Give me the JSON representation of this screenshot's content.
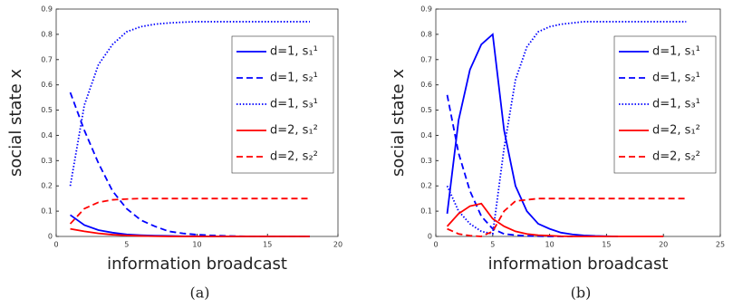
{
  "chart_data": [
    {
      "type": "line",
      "caption": "(a)",
      "xlabel": "information broadcast",
      "ylabel": "social state x",
      "xlim": [
        0,
        20
      ],
      "xticks": [
        0,
        5,
        10,
        15,
        20
      ],
      "ylim": [
        0,
        0.9
      ],
      "yticks": [
        0,
        0.1,
        0.2,
        0.3,
        0.4,
        0.5,
        0.6,
        0.7,
        0.8,
        0.9
      ],
      "legend": "upper right",
      "x": [
        1,
        2,
        3,
        4,
        5,
        6,
        7,
        8,
        9,
        10,
        11,
        12,
        13,
        14,
        15,
        16,
        17,
        18
      ],
      "series": [
        {
          "name": "d=1, s₁¹",
          "color": "#0000ff",
          "dash": "solid",
          "values": [
            0.085,
            0.045,
            0.025,
            0.015,
            0.008,
            0.005,
            0.003,
            0.002,
            0.001,
            0.001,
            0,
            0,
            0,
            0,
            0,
            0,
            0,
            0
          ]
        },
        {
          "name": "d=1, s₂¹",
          "color": "#0000ff",
          "dash": "dashed",
          "values": [
            0.57,
            0.42,
            0.29,
            0.18,
            0.11,
            0.065,
            0.04,
            0.02,
            0.012,
            0.007,
            0.004,
            0.002,
            0.001,
            0,
            0,
            0,
            0,
            0
          ]
        },
        {
          "name": "d=1, s₃¹",
          "color": "#0000ff",
          "dash": "dotted",
          "values": [
            0.2,
            0.52,
            0.68,
            0.76,
            0.81,
            0.83,
            0.84,
            0.845,
            0.848,
            0.85,
            0.85,
            0.85,
            0.85,
            0.85,
            0.85,
            0.85,
            0.85,
            0.85
          ]
        },
        {
          "name": "d=2, s₁²",
          "color": "#ff0000",
          "dash": "solid",
          "values": [
            0.03,
            0.02,
            0.012,
            0.007,
            0.004,
            0.002,
            0.001,
            0,
            0,
            0,
            0,
            0,
            0,
            0,
            0,
            0,
            0,
            0
          ]
        },
        {
          "name": "d=2, s₂²",
          "color": "#ff0000",
          "dash": "dashed",
          "values": [
            0.05,
            0.11,
            0.135,
            0.145,
            0.148,
            0.15,
            0.15,
            0.15,
            0.15,
            0.15,
            0.15,
            0.15,
            0.15,
            0.15,
            0.15,
            0.15,
            0.15,
            0.15
          ]
        }
      ]
    },
    {
      "type": "line",
      "caption": "(b)",
      "xlabel": "information broadcast",
      "ylabel": "social state x",
      "xlim": [
        0,
        25
      ],
      "xticks": [
        0,
        5,
        10,
        15,
        20,
        25
      ],
      "ylim": [
        0,
        0.9
      ],
      "yticks": [
        0,
        0.1,
        0.2,
        0.3,
        0.4,
        0.5,
        0.6,
        0.7,
        0.8,
        0.9
      ],
      "legend": "upper right",
      "x": [
        1,
        2,
        3,
        4,
        5,
        6,
        7,
        8,
        9,
        10,
        11,
        12,
        13,
        14,
        15,
        16,
        17,
        18,
        19,
        20,
        21,
        22
      ],
      "series": [
        {
          "name": "d=1, s₁¹",
          "color": "#0000ff",
          "dash": "solid",
          "values": [
            0.09,
            0.46,
            0.66,
            0.76,
            0.8,
            0.42,
            0.2,
            0.1,
            0.05,
            0.03,
            0.015,
            0.008,
            0.004,
            0.002,
            0.001,
            0,
            null,
            null,
            null,
            null,
            null,
            null
          ]
        },
        {
          "name": "d=1, s₂¹",
          "color": "#0000ff",
          "dash": "dashed",
          "values": [
            0.56,
            0.33,
            0.18,
            0.08,
            0.03,
            0.01,
            0.005,
            0.002,
            0.001,
            0,
            0,
            0,
            null,
            null,
            null,
            null,
            null,
            null,
            null,
            null,
            null,
            null
          ]
        },
        {
          "name": "d=1, s₃¹",
          "color": "#0000ff",
          "dash": "dotted",
          "values": [
            0.2,
            0.1,
            0.05,
            0.02,
            0.01,
            0.35,
            0.62,
            0.75,
            0.81,
            0.83,
            0.84,
            0.845,
            0.85,
            0.85,
            0.85,
            0.85,
            0.85,
            0.85,
            0.85,
            0.85,
            0.85,
            0.85
          ]
        },
        {
          "name": "d=2, s₁²",
          "color": "#ff0000",
          "dash": "solid",
          "values": [
            0.04,
            0.09,
            0.12,
            0.13,
            0.07,
            0.04,
            0.02,
            0.01,
            0.005,
            0.003,
            0.001,
            0,
            0,
            0,
            0,
            0,
            0,
            0,
            0,
            0,
            null,
            null
          ]
        },
        {
          "name": "d=2, s₂²",
          "color": "#ff0000",
          "dash": "dashed",
          "values": [
            0.03,
            0.01,
            0.003,
            0,
            0.02,
            0.1,
            0.14,
            0.145,
            0.15,
            0.15,
            0.15,
            0.15,
            0.15,
            0.15,
            0.15,
            0.15,
            0.15,
            0.15,
            0.15,
            0.15,
            0.15,
            0.15
          ]
        }
      ]
    }
  ]
}
